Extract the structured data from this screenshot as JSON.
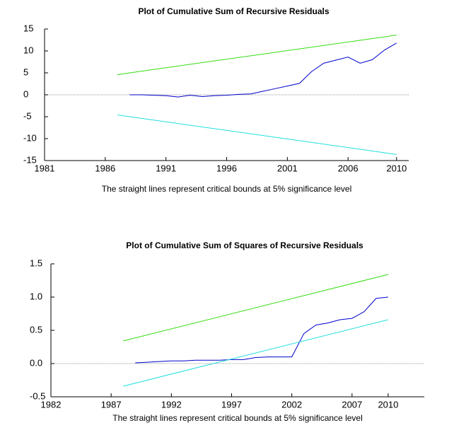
{
  "chart_data": [
    {
      "type": "line",
      "title": "Plot of Cumulative Sum of Recursive Residuals",
      "caption": "The straight lines represent critical bounds at 5% significance level",
      "xlim": [
        1981,
        2011
      ],
      "xticks": [
        1981,
        1986,
        1991,
        1996,
        2001,
        2006,
        2010
      ],
      "ylim": [
        -15,
        15
      ],
      "yticks": [
        -15,
        -10,
        -5,
        0,
        5,
        10,
        15
      ],
      "series": [
        {
          "color": "#0000cc",
          "x": [
            1988,
            1989,
            1990,
            1991,
            1992,
            1993,
            1994,
            1995,
            1996,
            1997,
            1998,
            1999,
            2000,
            2001,
            2002,
            2003,
            2004,
            2005,
            2006,
            2007,
            2008,
            2009,
            2010
          ],
          "values": [
            0,
            0,
            -0.1,
            -0.2,
            -0.5,
            -0.1,
            -0.4,
            -0.2,
            -0.1,
            0.1,
            0.2,
            0.8,
            1.4,
            2.0,
            2.6,
            5.3,
            7.2,
            7.9,
            8.6,
            7.2,
            8.0,
            10.2,
            11.8
          ]
        },
        {
          "color": "#33dd11",
          "x": [
            1987,
            2010
          ],
          "values": [
            4.6,
            13.6
          ]
        },
        {
          "color": "#22dddd",
          "x": [
            1987,
            2010
          ],
          "values": [
            -4.6,
            -13.6
          ]
        }
      ]
    },
    {
      "type": "line",
      "title": "Plot of Cumulative Sum of Squares of Recursive Residuals",
      "caption": "The straight lines represent critical bounds at 5% significance level",
      "xlim": [
        1982,
        2013
      ],
      "xticks": [
        1982,
        1987,
        1992,
        1997,
        2002,
        2007,
        2010
      ],
      "ylim": [
        -0.5,
        1.5
      ],
      "yticks": [
        -0.5,
        {
          "value": 0,
          "label": "0.0"
        },
        0.5,
        {
          "value": 1,
          "label": "1.0"
        },
        1.5
      ],
      "series": [
        {
          "color": "#0000cc",
          "x": [
            1989,
            1990,
            1991,
            1992,
            1993,
            1994,
            1995,
            1996,
            1997,
            1998,
            1999,
            2000,
            2001,
            2002,
            2003,
            2004,
            2005,
            2006,
            2007,
            2008,
            2009,
            2010
          ],
          "values": [
            0.01,
            0.02,
            0.03,
            0.04,
            0.04,
            0.05,
            0.05,
            0.05,
            0.06,
            0.06,
            0.09,
            0.1,
            0.1,
            0.1,
            0.45,
            0.58,
            0.61,
            0.66,
            0.68,
            0.78,
            0.98,
            1.0
          ]
        },
        {
          "color": "#33dd11",
          "x": [
            1988,
            2010
          ],
          "values": [
            0.34,
            1.34
          ]
        },
        {
          "color": "#22dddd",
          "x": [
            1988,
            2010
          ],
          "values": [
            -0.34,
            0.66
          ]
        }
      ]
    }
  ]
}
